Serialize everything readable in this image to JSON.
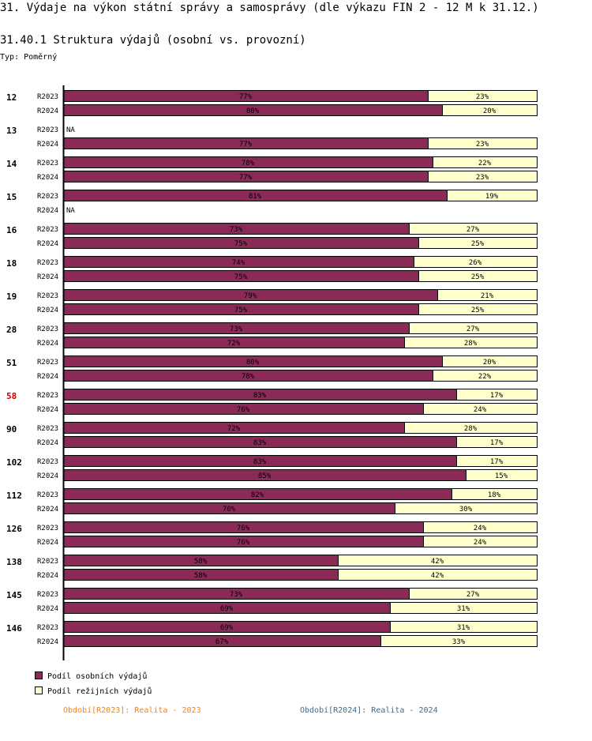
{
  "page": {
    "title": "31. Výdaje na výkon státní správy a samosprávy (dle výkazu FIN 2 - 12 M k 31.12.)",
    "chart_title": "31.40.1 Struktura výdajů (osobní vs. provozní)",
    "chart_type_label": "Typ: Poměrný"
  },
  "colors": {
    "personal": "#8b2a57",
    "overhead": "#ffffcc",
    "highlight_group": "#cc0000",
    "footnote_2023": "#ff8000",
    "footnote_2024": "#3a6e8f"
  },
  "legend": [
    {
      "label": "Podíl osobních výdajů",
      "color": "#8b2a57"
    },
    {
      "label": "Podíl režijních výdajů",
      "color": "#ffffcc"
    }
  ],
  "footnotes": {
    "r2023": "Období[R2023]: Realita - 2023",
    "r2024": "Období[R2024]: Realita - 2024"
  },
  "chart_data": {
    "type": "bar",
    "orientation": "horizontal",
    "stacked": "percent",
    "title": "31.40.1 Struktura výdajů (osobní vs. provozní)",
    "series_names": [
      "Podíl osobních výdajů",
      "Podíl režijních výdajů"
    ],
    "na_label": "NA",
    "highlighted_group": "58",
    "groups": [
      {
        "id": "12",
        "rows": [
          {
            "period": "R2023",
            "personal": 77,
            "overhead": 23
          },
          {
            "period": "R2024",
            "personal": 80,
            "overhead": 20
          }
        ]
      },
      {
        "id": "13",
        "rows": [
          {
            "period": "R2023",
            "na": true
          },
          {
            "period": "R2024",
            "personal": 77,
            "overhead": 23
          }
        ]
      },
      {
        "id": "14",
        "rows": [
          {
            "period": "R2023",
            "personal": 78,
            "overhead": 22
          },
          {
            "period": "R2024",
            "personal": 77,
            "overhead": 23
          }
        ]
      },
      {
        "id": "15",
        "rows": [
          {
            "period": "R2023",
            "personal": 81,
            "overhead": 19
          },
          {
            "period": "R2024",
            "na": true
          }
        ]
      },
      {
        "id": "16",
        "rows": [
          {
            "period": "R2023",
            "personal": 73,
            "overhead": 27
          },
          {
            "period": "R2024",
            "personal": 75,
            "overhead": 25
          }
        ]
      },
      {
        "id": "18",
        "rows": [
          {
            "period": "R2023",
            "personal": 74,
            "overhead": 26
          },
          {
            "period": "R2024",
            "personal": 75,
            "overhead": 25
          }
        ]
      },
      {
        "id": "19",
        "rows": [
          {
            "period": "R2023",
            "personal": 79,
            "overhead": 21
          },
          {
            "period": "R2024",
            "personal": 75,
            "overhead": 25
          }
        ]
      },
      {
        "id": "28",
        "rows": [
          {
            "period": "R2023",
            "personal": 73,
            "overhead": 27
          },
          {
            "period": "R2024",
            "personal": 72,
            "overhead": 28
          }
        ]
      },
      {
        "id": "51",
        "rows": [
          {
            "period": "R2023",
            "personal": 80,
            "overhead": 20
          },
          {
            "period": "R2024",
            "personal": 78,
            "overhead": 22
          }
        ]
      },
      {
        "id": "58",
        "rows": [
          {
            "period": "R2023",
            "personal": 83,
            "overhead": 17
          },
          {
            "period": "R2024",
            "personal": 76,
            "overhead": 24
          }
        ]
      },
      {
        "id": "90",
        "rows": [
          {
            "period": "R2023",
            "personal": 72,
            "overhead": 28
          },
          {
            "period": "R2024",
            "personal": 83,
            "overhead": 17
          }
        ]
      },
      {
        "id": "102",
        "rows": [
          {
            "period": "R2023",
            "personal": 83,
            "overhead": 17
          },
          {
            "period": "R2024",
            "personal": 85,
            "overhead": 15
          }
        ]
      },
      {
        "id": "112",
        "rows": [
          {
            "period": "R2023",
            "personal": 82,
            "overhead": 18
          },
          {
            "period": "R2024",
            "personal": 70,
            "overhead": 30
          }
        ]
      },
      {
        "id": "126",
        "rows": [
          {
            "period": "R2023",
            "personal": 76,
            "overhead": 24
          },
          {
            "period": "R2024",
            "personal": 76,
            "overhead": 24
          }
        ]
      },
      {
        "id": "138",
        "rows": [
          {
            "period": "R2023",
            "personal": 58,
            "overhead": 42
          },
          {
            "period": "R2024",
            "personal": 58,
            "overhead": 42
          }
        ]
      },
      {
        "id": "145",
        "rows": [
          {
            "period": "R2023",
            "personal": 73,
            "overhead": 27
          },
          {
            "period": "R2024",
            "personal": 69,
            "overhead": 31
          }
        ]
      },
      {
        "id": "146",
        "rows": [
          {
            "period": "R2023",
            "personal": 69,
            "overhead": 31
          },
          {
            "period": "R2024",
            "personal": 67,
            "overhead": 33
          }
        ]
      }
    ]
  }
}
